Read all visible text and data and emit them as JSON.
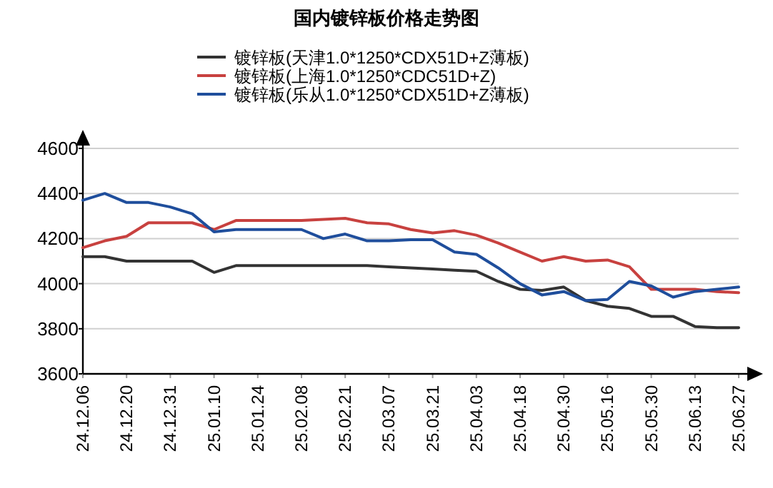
{
  "chart_data": {
    "type": "line",
    "title": "国内镀锌板价格走势图",
    "categories": [
      "24.12.06",
      null,
      "24.12.20",
      null,
      "24.12.31",
      null,
      "25.01.10",
      null,
      "25.01.24",
      null,
      "25.02.08",
      null,
      "25.02.21",
      null,
      "25.03.07",
      null,
      "25.03.21",
      null,
      "25.04.03",
      null,
      "25.04.18",
      null,
      "25.04.30",
      null,
      "25.05.16",
      null,
      "25.05.30",
      null,
      "25.06.13",
      null,
      "25.06.27"
    ],
    "series": [
      {
        "name": "镀锌板(天津1.0*1250*CDX51D+Z薄板)",
        "color": "#333333",
        "values": [
          4120,
          4120,
          4100,
          4100,
          4100,
          4100,
          4050,
          4080,
          4080,
          4080,
          4080,
          4080,
          4080,
          4080,
          4075,
          4070,
          4065,
          4060,
          4055,
          4010,
          3975,
          3970,
          3985,
          3925,
          3900,
          3890,
          3855,
          3855,
          3810,
          3805,
          3805
        ]
      },
      {
        "name": "镀锌板(上海1.0*1250*CDC51D+Z)",
        "color": "#c8413f",
        "values": [
          4160,
          4190,
          4210,
          4270,
          4270,
          4270,
          4240,
          4280,
          4280,
          4280,
          4280,
          4285,
          4290,
          4270,
          4265,
          4240,
          4225,
          4235,
          4215,
          4180,
          4140,
          4100,
          4120,
          4100,
          4105,
          4075,
          3975,
          3975,
          3975,
          3965,
          3960
        ]
      },
      {
        "name": "镀锌板(乐从1.0*1250*CDX51D+Z薄板)",
        "color": "#1f4e9c",
        "values": [
          4370,
          4400,
          4360,
          4360,
          4340,
          4310,
          4230,
          4240,
          4240,
          4240,
          4240,
          4200,
          4220,
          4190,
          4190,
          4195,
          4195,
          4140,
          4130,
          4070,
          4000,
          3950,
          3965,
          3925,
          3930,
          4010,
          3990,
          3940,
          3965,
          3975,
          3985
        ]
      }
    ],
    "ylim": [
      3600,
      4600
    ],
    "yticks": [
      3600,
      3800,
      4000,
      4200,
      4400,
      4600
    ],
    "grid": "y",
    "legend": "top",
    "line_style": "solid"
  }
}
